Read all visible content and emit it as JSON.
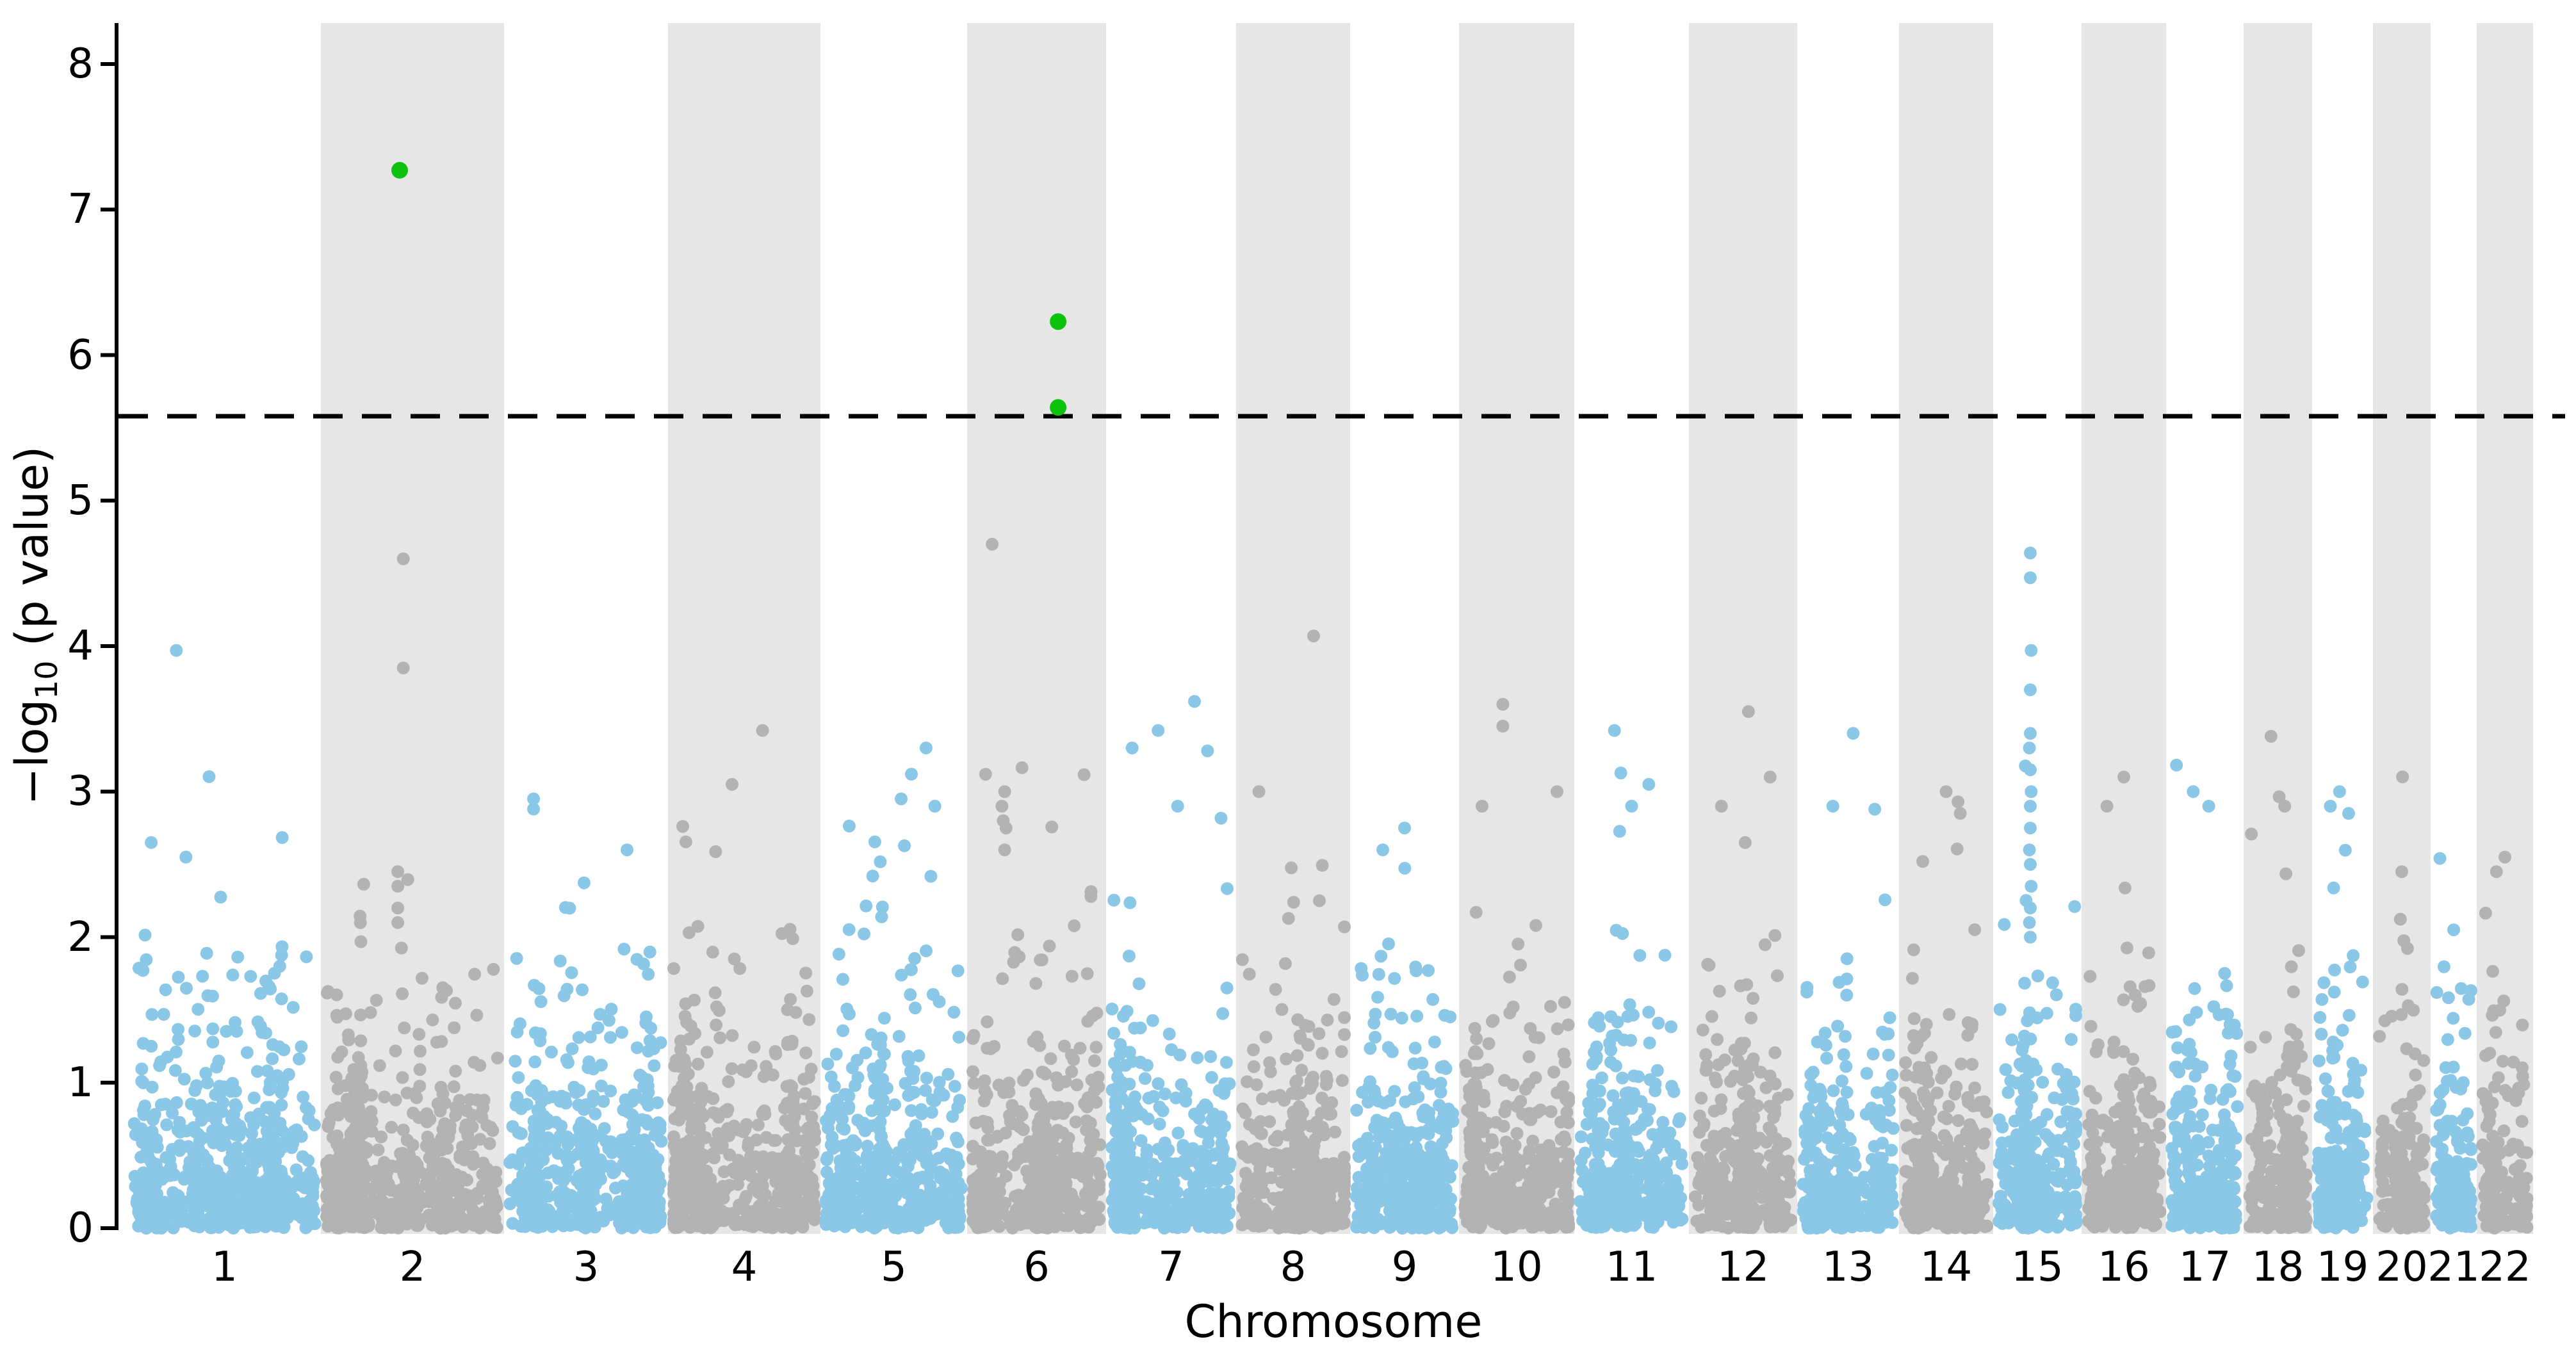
{
  "figure": {
    "kind": "manhattan-plot",
    "y_axis": {
      "label_prefix": "−log",
      "label_sub": "10",
      "label_suffix": " (p value)"
    },
    "x_axis": {
      "label": "Chromosome"
    }
  },
  "chart_data": {
    "type": "scatter",
    "subtype": "manhattan",
    "title": "",
    "xlabel": "Chromosome",
    "ylabel": "-log10 (p value)",
    "ylim": [
      0,
      8.28
    ],
    "grid": false,
    "legend": null,
    "yticks": [
      0,
      1,
      2,
      3,
      4,
      5,
      6,
      7,
      8
    ],
    "threshold_line": {
      "y": 5.58,
      "style": "dashed",
      "color": "#000000"
    },
    "colors": {
      "odd_chromosome_points": "#8bc8e8",
      "even_chromosome_points": "#b3b3b3",
      "significant_points": "#0cc20c",
      "even_chromosome_band": "#e6e6e6",
      "background": "#ffffff",
      "axis": "#000000"
    },
    "significant_points": [
      {
        "chromosome": 2,
        "neg_log10_p": 7.27,
        "x_frac": 0.43
      },
      {
        "chromosome": 6,
        "neg_log10_p": 6.23,
        "x_frac": 0.655
      },
      {
        "chromosome": 6,
        "neg_log10_p": 5.64,
        "x_frac": 0.655
      }
    ],
    "chromosomes": [
      {
        "chr": 1,
        "rel_width": 301,
        "outliers": [
          [
            3.97,
            0.25
          ],
          [
            2.65,
            0.12
          ],
          [
            2.55,
            0.3
          ]
        ]
      },
      {
        "chr": 2,
        "rel_width": 286,
        "outliers": [
          [
            4.6,
            0.45
          ],
          [
            3.85,
            0.45
          ],
          [
            2.45,
            0.42
          ],
          [
            2.35,
            0.42
          ],
          [
            2.2,
            0.42
          ],
          [
            2.1,
            0.42
          ]
        ]
      },
      {
        "chr": 3,
        "rel_width": 256,
        "outliers": [
          [
            2.95,
            0.18
          ],
          [
            2.88,
            0.18
          ],
          [
            2.6,
            0.75
          ]
        ]
      },
      {
        "chr": 4,
        "rel_width": 238,
        "outliers": [
          [
            3.42,
            0.62
          ],
          [
            3.05,
            0.42
          ]
        ]
      },
      {
        "chr": 5,
        "rel_width": 229,
        "outliers": [
          [
            3.3,
            0.72
          ],
          [
            3.12,
            0.62
          ],
          [
            2.95,
            0.55
          ],
          [
            2.9,
            0.78
          ]
        ]
      },
      {
        "chr": 6,
        "rel_width": 217,
        "outliers": [
          [
            4.7,
            0.18
          ],
          [
            3.0,
            0.27
          ],
          [
            2.9,
            0.25
          ],
          [
            2.8,
            0.26
          ],
          [
            2.75,
            0.28
          ],
          [
            2.6,
            0.27
          ]
        ]
      },
      {
        "chr": 7,
        "rel_width": 203,
        "outliers": [
          [
            3.62,
            0.68
          ],
          [
            3.42,
            0.4
          ],
          [
            3.3,
            0.2
          ],
          [
            3.28,
            0.78
          ],
          [
            2.9,
            0.55
          ]
        ]
      },
      {
        "chr": 8,
        "rel_width": 178,
        "outliers": [
          [
            4.07,
            0.68
          ],
          [
            3.0,
            0.2
          ]
        ]
      },
      {
        "chr": 9,
        "rel_width": 170,
        "outliers": [
          [
            2.75,
            0.5
          ],
          [
            2.6,
            0.3
          ]
        ]
      },
      {
        "chr": 10,
        "rel_width": 180,
        "outliers": [
          [
            3.6,
            0.38
          ],
          [
            3.45,
            0.38
          ],
          [
            3.0,
            0.85
          ],
          [
            2.9,
            0.2
          ]
        ]
      },
      {
        "chr": 11,
        "rel_width": 179,
        "outliers": [
          [
            3.42,
            0.35
          ],
          [
            3.05,
            0.65
          ],
          [
            2.9,
            0.5
          ]
        ]
      },
      {
        "chr": 12,
        "rel_width": 169,
        "outliers": [
          [
            3.55,
            0.55
          ],
          [
            3.1,
            0.75
          ],
          [
            2.9,
            0.3
          ]
        ]
      },
      {
        "chr": 13,
        "rel_width": 159,
        "outliers": [
          [
            3.4,
            0.55
          ],
          [
            2.9,
            0.35
          ]
        ]
      },
      {
        "chr": 14,
        "rel_width": 147,
        "outliers": [
          [
            3.0,
            0.5
          ],
          [
            2.85,
            0.65
          ]
        ]
      },
      {
        "chr": 15,
        "rel_width": 138,
        "outliers": [
          [
            4.64,
            0.42
          ],
          [
            4.47,
            0.42
          ],
          [
            3.97,
            0.43
          ],
          [
            3.7,
            0.42
          ],
          [
            3.4,
            0.42
          ],
          [
            3.3,
            0.41
          ],
          [
            3.15,
            0.42
          ],
          [
            3.0,
            0.43
          ],
          [
            2.9,
            0.42
          ],
          [
            2.75,
            0.42
          ],
          [
            2.6,
            0.41
          ],
          [
            2.5,
            0.42
          ],
          [
            2.35,
            0.43
          ],
          [
            2.2,
            0.42
          ],
          [
            2.1,
            0.41
          ],
          [
            2.0,
            0.42
          ]
        ]
      },
      {
        "chr": 16,
        "rel_width": 132,
        "outliers": [
          [
            3.1,
            0.5
          ],
          [
            2.9,
            0.3
          ]
        ]
      },
      {
        "chr": 17,
        "rel_width": 121,
        "outliers": [
          [
            3.0,
            0.35
          ],
          [
            2.9,
            0.55
          ]
        ]
      },
      {
        "chr": 18,
        "rel_width": 107,
        "outliers": [
          [
            3.38,
            0.4
          ],
          [
            2.9,
            0.6
          ]
        ]
      },
      {
        "chr": 19,
        "rel_width": 95,
        "outliers": [
          [
            3.0,
            0.45
          ],
          [
            2.9,
            0.3
          ],
          [
            2.85,
            0.6
          ]
        ]
      },
      {
        "chr": 20,
        "rel_width": 90,
        "outliers": [
          [
            2.45,
            0.5
          ]
        ]
      },
      {
        "chr": 21,
        "rel_width": 72,
        "outliers": [
          [
            2.05,
            0.5
          ]
        ]
      },
      {
        "chr": 22,
        "rel_width": 88,
        "outliers": [
          [
            2.55,
            0.5
          ],
          [
            2.45,
            0.35
          ]
        ]
      }
    ]
  }
}
